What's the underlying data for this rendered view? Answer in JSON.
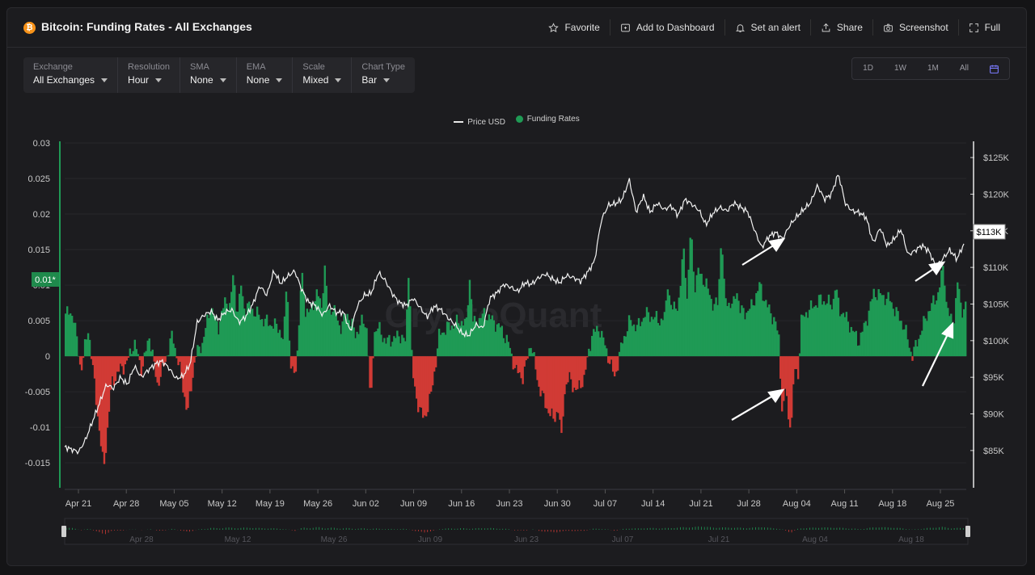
{
  "header": {
    "logo_glyph": "₿",
    "title": "Bitcoin: Funding Rates - All Exchanges",
    "actions": [
      {
        "label": "Favorite",
        "icon": "star-icon"
      },
      {
        "label": "Add to Dashboard",
        "icon": "dashboard-add-icon"
      },
      {
        "label": "Set an alert",
        "icon": "bell-icon"
      },
      {
        "label": "Share",
        "icon": "share-icon"
      },
      {
        "label": "Screenshot",
        "icon": "camera-icon"
      },
      {
        "label": "Full",
        "icon": "fullscreen-icon"
      }
    ]
  },
  "controls": [
    {
      "label": "Exchange",
      "value": "All Exchanges"
    },
    {
      "label": "Resolution",
      "value": "Hour"
    },
    {
      "label": "SMA",
      "value": "None"
    },
    {
      "label": "EMA",
      "value": "None"
    },
    {
      "label": "Scale",
      "value": "Mixed"
    },
    {
      "label": "Chart Type",
      "value": "Bar"
    }
  ],
  "ranges": [
    "1D",
    "1W",
    "1M",
    "All"
  ],
  "legend": {
    "price": "Price USD",
    "funding": "Funding Rates"
  },
  "colors": {
    "positive": "#1f9a55",
    "negative": "#d13a35",
    "price_line": "#f2f2f2",
    "accent": "#2aa35f"
  },
  "chart_data": {
    "type": "bar",
    "x_ticks": [
      "Apr 21",
      "Apr 28",
      "May 05",
      "May 12",
      "May 19",
      "May 26",
      "Jun 02",
      "Jun 09",
      "Jun 16",
      "Jun 23",
      "Jun 30",
      "Jul 07",
      "Jul 14",
      "Jul 21",
      "Jul 28",
      "Aug 04",
      "Aug 11",
      "Aug 18",
      "Aug 25"
    ],
    "navigator_ticks": [
      "Apr 28",
      "May 12",
      "May 26",
      "Jun 09",
      "Jun 23",
      "Jul 07",
      "Jul 21",
      "Aug 04",
      "Aug 18"
    ],
    "y_left_ticks": [
      "0.03",
      "0.025",
      "0.02",
      "0.015",
      "0.01",
      "0.005",
      "0",
      "-0.005",
      "-0.01",
      "-0.015"
    ],
    "y_left_range": [
      -0.0185,
      0.03
    ],
    "y_right_ticks": [
      "$125K",
      "$120K",
      "$115K",
      "$110K",
      "$105K",
      "$100K",
      "$95K",
      "$90K",
      "$85K"
    ],
    "y_right_range": [
      83000,
      126000
    ],
    "current_funding": "0.01*",
    "current_price": "$113K",
    "watermark": "CryptoQuant",
    "funding_keypoints": [
      [
        0,
        0.006
      ],
      [
        1,
        0.006
      ],
      [
        2,
        -0.002
      ],
      [
        3,
        0.004
      ],
      [
        4,
        -0.006
      ],
      [
        5,
        -0.016
      ],
      [
        6,
        -0.004
      ],
      [
        7,
        -0.002
      ],
      [
        8,
        -0.001
      ],
      [
        9,
        0.002
      ],
      [
        10,
        -0.002
      ],
      [
        11,
        0.003
      ],
      [
        12,
        -0.004
      ],
      [
        13,
        -0.001
      ],
      [
        14,
        0.003
      ],
      [
        15,
        -0.002
      ],
      [
        16,
        -0.008
      ],
      [
        17,
        0.0
      ],
      [
        18,
        0.002
      ],
      [
        19,
        0.007
      ],
      [
        20,
        0.004
      ],
      [
        21,
        0.008
      ],
      [
        22,
        0.006
      ],
      [
        24,
        0.007
      ],
      [
        26,
        0.005
      ],
      [
        28,
        0.004
      ],
      [
        30,
        -0.003
      ],
      [
        31,
        0.007
      ],
      [
        32,
        0.006
      ],
      [
        33,
        0.009
      ],
      [
        34,
        0.005
      ],
      [
        35,
        0.007
      ],
      [
        36,
        0.004
      ],
      [
        37,
        0.006
      ],
      [
        38,
        0.003
      ],
      [
        39,
        0.005
      ],
      [
        40,
        0.003
      ],
      [
        41,
        0.004
      ],
      [
        42,
        0.002
      ],
      [
        44,
        0.003
      ],
      [
        45,
        0.001
      ],
      [
        46,
        -0.006
      ],
      [
        47,
        -0.009
      ],
      [
        48,
        -0.005
      ],
      [
        49,
        0.003
      ],
      [
        50,
        0.004
      ],
      [
        52,
        0.005
      ],
      [
        53,
        0.004
      ],
      [
        55,
        0.006
      ],
      [
        56,
        0.005
      ],
      [
        57,
        0.004
      ],
      [
        58,
        0.002
      ],
      [
        59,
        -0.002
      ],
      [
        60,
        -0.003
      ],
      [
        61,
        0.002
      ],
      [
        62,
        -0.004
      ],
      [
        63,
        -0.007
      ],
      [
        64,
        -0.009
      ],
      [
        65,
        -0.006
      ],
      [
        66,
        -0.003
      ],
      [
        67,
        -0.005
      ],
      [
        68,
        -0.003
      ],
      [
        69,
        0.003
      ],
      [
        70,
        0.004
      ],
      [
        72,
        -0.003
      ],
      [
        73,
        0.002
      ],
      [
        74,
        0.005
      ],
      [
        75,
        0.004
      ],
      [
        76,
        0.006
      ],
      [
        78,
        0.005
      ],
      [
        80,
        0.007
      ],
      [
        81,
        0.009
      ],
      [
        82,
        0.008
      ],
      [
        83,
        0.012
      ],
      [
        84,
        0.01
      ],
      [
        85,
        0.007
      ],
      [
        86,
        0.008
      ],
      [
        88,
        0.007
      ],
      [
        89,
        0.006
      ],
      [
        90,
        0.007
      ],
      [
        91,
        0.01
      ],
      [
        92,
        0.007
      ],
      [
        93,
        0.005
      ],
      [
        94,
        0.0
      ],
      [
        95,
        -0.01
      ],
      [
        96,
        0.004
      ],
      [
        97,
        0.006
      ],
      [
        98,
        0.007
      ],
      [
        99,
        0.008
      ],
      [
        101,
        0.007
      ],
      [
        102,
        0.006
      ],
      [
        103,
        0.004
      ],
      [
        104,
        0.002
      ],
      [
        105,
        0.005
      ],
      [
        106,
        0.009
      ],
      [
        108,
        0.008
      ],
      [
        109,
        0.006
      ],
      [
        110,
        0.004
      ],
      [
        111,
        0.0
      ],
      [
        112,
        0.003
      ],
      [
        113,
        0.006
      ],
      [
        114,
        0.008
      ],
      [
        115,
        0.01
      ],
      [
        116,
        0.005
      ],
      [
        117,
        0.006
      ],
      [
        118,
        0.007
      ]
    ],
    "funding_spikes": [
      [
        22,
        0.012
      ],
      [
        23,
        0.01
      ],
      [
        29,
        0.011
      ],
      [
        31,
        0.012
      ],
      [
        34,
        0.013
      ],
      [
        40,
        -0.007
      ],
      [
        45,
        0.012
      ],
      [
        53,
        0.011
      ],
      [
        65,
        -0.011
      ],
      [
        79,
        0.01
      ],
      [
        81,
        0.016
      ],
      [
        82,
        0.019
      ],
      [
        86,
        0.017
      ],
      [
        88,
        0.009
      ],
      [
        94,
        -0.009
      ],
      [
        95,
        -0.01
      ],
      [
        96,
        -0.004
      ],
      [
        101,
        0.01
      ],
      [
        115,
        0.013
      ],
      [
        117,
        0.011
      ]
    ],
    "price_keypoints": [
      [
        0,
        85500
      ],
      [
        2,
        84800
      ],
      [
        3,
        86500
      ],
      [
        4,
        89000
      ],
      [
        5,
        91500
      ],
      [
        6,
        94000
      ],
      [
        7,
        93500
      ],
      [
        8,
        95000
      ],
      [
        9,
        94000
      ],
      [
        10,
        96500
      ],
      [
        11,
        95000
      ],
      [
        12,
        96000
      ],
      [
        13,
        96800
      ],
      [
        14,
        97200
      ],
      [
        15,
        96200
      ],
      [
        16,
        94800
      ],
      [
        17,
        95200
      ],
      [
        18,
        96800
      ],
      [
        19,
        102500
      ],
      [
        20,
        103500
      ],
      [
        21,
        104000
      ],
      [
        22,
        102800
      ],
      [
        23,
        103900
      ],
      [
        24,
        104200
      ],
      [
        25,
        102500
      ],
      [
        26,
        103300
      ],
      [
        27,
        105000
      ],
      [
        28,
        107500
      ],
      [
        29,
        106200
      ],
      [
        30,
        109500
      ],
      [
        31,
        107800
      ],
      [
        32,
        108800
      ],
      [
        33,
        109500
      ],
      [
        34,
        107000
      ],
      [
        35,
        105200
      ],
      [
        36,
        104800
      ],
      [
        37,
        103500
      ],
      [
        38,
        104800
      ],
      [
        39,
        103800
      ],
      [
        40,
        103900
      ],
      [
        41,
        101200
      ],
      [
        42,
        104800
      ],
      [
        43,
        106200
      ],
      [
        44,
        106500
      ],
      [
        45,
        109300
      ],
      [
        46,
        108200
      ],
      [
        47,
        106400
      ],
      [
        48,
        105200
      ],
      [
        49,
        104800
      ],
      [
        50,
        105800
      ],
      [
        51,
        104500
      ],
      [
        52,
        103200
      ],
      [
        53,
        104700
      ],
      [
        54,
        104200
      ],
      [
        55,
        103100
      ],
      [
        56,
        102200
      ],
      [
        57,
        101000
      ],
      [
        58,
        100700
      ],
      [
        59,
        102200
      ],
      [
        60,
        101700
      ],
      [
        61,
        105800
      ],
      [
        62,
        106500
      ],
      [
        63,
        107700
      ],
      [
        64,
        107300
      ],
      [
        65,
        106700
      ],
      [
        66,
        107900
      ],
      [
        67,
        107700
      ],
      [
        68,
        108600
      ],
      [
        69,
        109100
      ],
      [
        70,
        108400
      ],
      [
        71,
        107900
      ],
      [
        72,
        108900
      ],
      [
        73,
        108600
      ],
      [
        74,
        108100
      ],
      [
        75,
        109300
      ],
      [
        76,
        110800
      ],
      [
        77,
        116500
      ],
      [
        78,
        118500
      ],
      [
        79,
        118700
      ],
      [
        80,
        119300
      ],
      [
        81,
        122000
      ],
      [
        82,
        117500
      ],
      [
        83,
        119800
      ],
      [
        84,
        117500
      ],
      [
        85,
        118800
      ],
      [
        86,
        117900
      ],
      [
        87,
        118400
      ],
      [
        88,
        117100
      ],
      [
        89,
        119300
      ],
      [
        90,
        118600
      ],
      [
        91,
        117800
      ],
      [
        92,
        115800
      ],
      [
        93,
        117400
      ],
      [
        94,
        118200
      ],
      [
        95,
        117700
      ],
      [
        96,
        118800
      ],
      [
        97,
        118200
      ],
      [
        98,
        117600
      ],
      [
        99,
        115000
      ],
      [
        100,
        112700
      ],
      [
        101,
        114200
      ],
      [
        102,
        114800
      ],
      [
        103,
        113900
      ],
      [
        104,
        115700
      ],
      [
        105,
        116900
      ],
      [
        106,
        117900
      ],
      [
        107,
        118800
      ],
      [
        108,
        121200
      ],
      [
        109,
        119300
      ],
      [
        110,
        120000
      ],
      [
        111,
        122800
      ],
      [
        112,
        118700
      ],
      [
        113,
        117700
      ],
      [
        114,
        117500
      ],
      [
        115,
        116800
      ],
      [
        116,
        113300
      ],
      [
        117,
        115400
      ],
      [
        118,
        112900
      ],
      [
        119,
        113900
      ],
      [
        120,
        115200
      ],
      [
        121,
        111700
      ],
      [
        122,
        112300
      ],
      [
        123,
        113000
      ],
      [
        124,
        112200
      ],
      [
        125,
        110100
      ],
      [
        126,
        111200
      ],
      [
        127,
        112400
      ],
      [
        128,
        111100
      ],
      [
        129,
        113200
      ]
    ]
  }
}
